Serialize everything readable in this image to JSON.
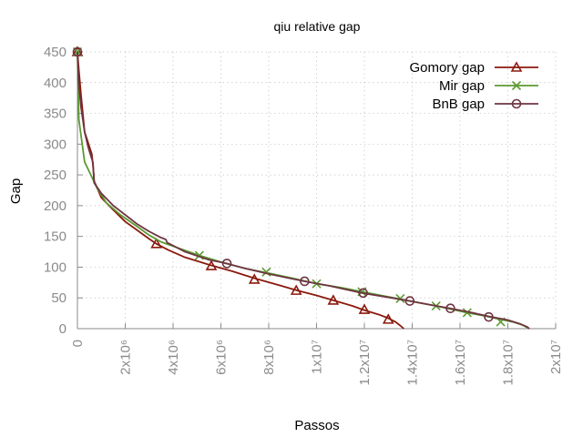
{
  "chart_data": {
    "type": "line",
    "title": "qiu relative gap",
    "xlabel": "Passos",
    "ylabel": "Gap",
    "xlim": [
      0,
      20000000
    ],
    "ylim": [
      0,
      450
    ],
    "x_ticks": [
      0,
      2000000,
      4000000,
      6000000,
      8000000,
      10000000,
      12000000,
      14000000,
      16000000,
      18000000,
      20000000
    ],
    "x_tick_labels": [
      "0",
      "2x10⁶",
      "4x10⁶",
      "6x10⁶",
      "8x10⁶",
      "1x10⁷",
      "1.2x10⁷",
      "1.4x10⁷",
      "1.6x10⁷",
      "1.8x10⁷",
      "2x10⁷"
    ],
    "y_ticks": [
      0,
      50,
      100,
      150,
      200,
      250,
      300,
      350,
      400,
      450
    ],
    "y_tick_labels": [
      "0",
      "50",
      "100",
      "150",
      "200",
      "250",
      "300",
      "350",
      "400",
      "450"
    ],
    "grid": true,
    "legend_position": "top-right",
    "series": [
      {
        "name": "Gomory gap",
        "color": "#8b1a0e",
        "marker": "triangle",
        "points": [
          [
            0,
            450
          ],
          [
            60000,
            420
          ],
          [
            150000,
            380
          ],
          [
            300000,
            320
          ],
          [
            450000,
            302
          ],
          [
            600000,
            284
          ],
          [
            650000,
            266
          ],
          [
            700000,
            240
          ],
          [
            1000000,
            213
          ],
          [
            1500000,
            193
          ],
          [
            2000000,
            174
          ],
          [
            2500000,
            160
          ],
          [
            3000000,
            146
          ],
          [
            3300000,
            138
          ],
          [
            3800000,
            128
          ],
          [
            4500000,
            116
          ],
          [
            5500000,
            104
          ],
          [
            6500000,
            93
          ],
          [
            7400000,
            82
          ],
          [
            8500000,
            70
          ],
          [
            9200000,
            62
          ],
          [
            10000000,
            54
          ],
          [
            10700000,
            46
          ],
          [
            11500000,
            37
          ],
          [
            12000000,
            30
          ],
          [
            12600000,
            23
          ],
          [
            13000000,
            17
          ],
          [
            13300000,
            11
          ],
          [
            13500000,
            5
          ],
          [
            13650000,
            0
          ]
        ],
        "markers": [
          [
            0,
            450
          ],
          [
            3300000,
            138
          ],
          [
            5600000,
            102
          ],
          [
            7400000,
            80
          ],
          [
            9150000,
            62
          ],
          [
            10700000,
            46
          ],
          [
            12000000,
            31
          ],
          [
            13000000,
            15
          ]
        ]
      },
      {
        "name": "Mir gap",
        "color": "#5c9a31",
        "marker": "x",
        "points": [
          [
            0,
            450
          ],
          [
            60000,
            340
          ],
          [
            200000,
            300
          ],
          [
            300000,
            271
          ],
          [
            500000,
            255
          ],
          [
            800000,
            230
          ],
          [
            1200000,
            205
          ],
          [
            1800000,
            185
          ],
          [
            2500000,
            166
          ],
          [
            3000000,
            152
          ],
          [
            3500000,
            141
          ],
          [
            4300000,
            130
          ],
          [
            5100000,
            119
          ],
          [
            6200000,
            106
          ],
          [
            7000000,
            98
          ],
          [
            7900000,
            91
          ],
          [
            9000000,
            82
          ],
          [
            10000000,
            73
          ],
          [
            11000000,
            67
          ],
          [
            11900000,
            60
          ],
          [
            12700000,
            54
          ],
          [
            13500000,
            48
          ],
          [
            14300000,
            42
          ],
          [
            15000000,
            37
          ],
          [
            15700000,
            31
          ],
          [
            16300000,
            26
          ],
          [
            17000000,
            21
          ],
          [
            17700000,
            15
          ],
          [
            18200000,
            11
          ],
          [
            18600000,
            6
          ],
          [
            18900000,
            0
          ]
        ],
        "markers": [
          [
            0,
            450
          ],
          [
            5100000,
            119
          ],
          [
            7900000,
            92
          ],
          [
            10000000,
            73
          ],
          [
            11900000,
            60
          ],
          [
            13500000,
            49
          ],
          [
            15000000,
            37
          ],
          [
            16300000,
            26
          ],
          [
            17700000,
            11
          ]
        ]
      },
      {
        "name": "BnB gap",
        "color": "#6e3542",
        "marker": "circle",
        "points": [
          [
            0,
            450
          ],
          [
            50000,
            400
          ],
          [
            150000,
            360
          ],
          [
            300000,
            320
          ],
          [
            450000,
            295
          ],
          [
            650000,
            270
          ],
          [
            700000,
            237
          ],
          [
            1000000,
            220
          ],
          [
            1500000,
            200
          ],
          [
            2000000,
            185
          ],
          [
            2500000,
            170
          ],
          [
            3000000,
            158
          ],
          [
            3500000,
            148
          ],
          [
            3700000,
            145
          ],
          [
            3750000,
            140
          ],
          [
            4500000,
            125
          ],
          [
            5500000,
            112
          ],
          [
            6250000,
            106
          ],
          [
            7000000,
            98
          ],
          [
            8000000,
            89
          ],
          [
            9500000,
            77
          ],
          [
            10500000,
            70
          ],
          [
            11900000,
            58
          ],
          [
            13000000,
            51
          ],
          [
            13900000,
            45
          ],
          [
            15000000,
            37
          ],
          [
            15600000,
            33
          ],
          [
            16500000,
            26
          ],
          [
            17200000,
            20
          ],
          [
            18000000,
            14
          ],
          [
            18500000,
            8
          ],
          [
            18800000,
            3
          ],
          [
            18900000,
            0
          ]
        ],
        "markers": [
          [
            0,
            450
          ],
          [
            6250000,
            106
          ],
          [
            9500000,
            77
          ],
          [
            11950000,
            58
          ],
          [
            13900000,
            45
          ],
          [
            15600000,
            33
          ],
          [
            17200000,
            19
          ]
        ]
      }
    ]
  }
}
